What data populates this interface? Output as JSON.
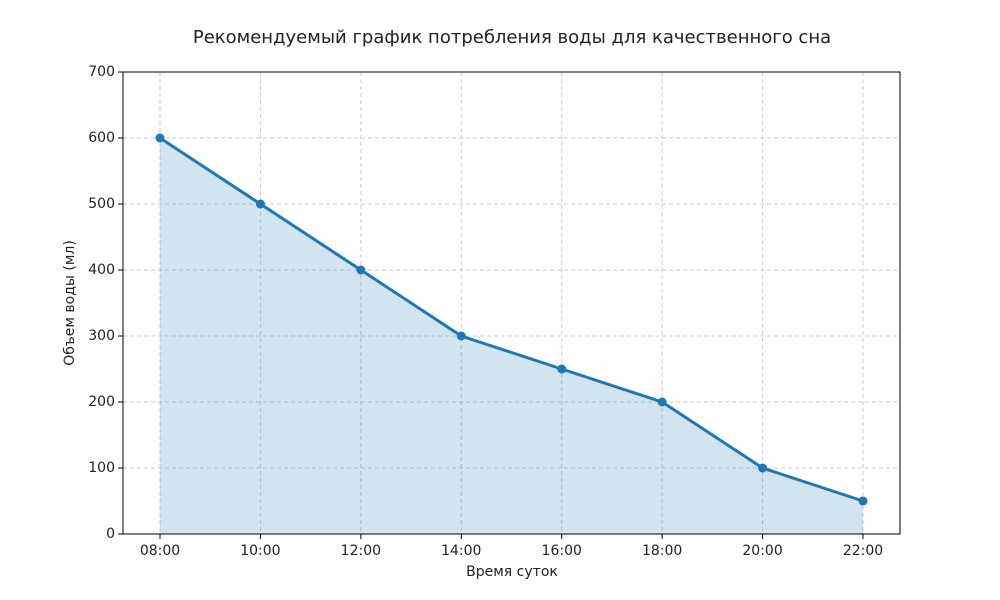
{
  "chart_data": {
    "type": "area-line",
    "title": "Рекомендуемый график потребления воды для качественного сна",
    "x_label": "Время суток",
    "y_label": "Объем воды (мл)",
    "categories": [
      "08:00",
      "10:00",
      "12:00",
      "14:00",
      "16:00",
      "18:00",
      "20:00",
      "22:00"
    ],
    "values": [
      600,
      500,
      400,
      300,
      250,
      200,
      100,
      50
    ],
    "color": "#1f77b4",
    "ylim": [
      0,
      700
    ],
    "yticks": [
      0,
      100,
      200,
      300,
      400,
      500,
      600,
      700
    ],
    "grid": true
  }
}
